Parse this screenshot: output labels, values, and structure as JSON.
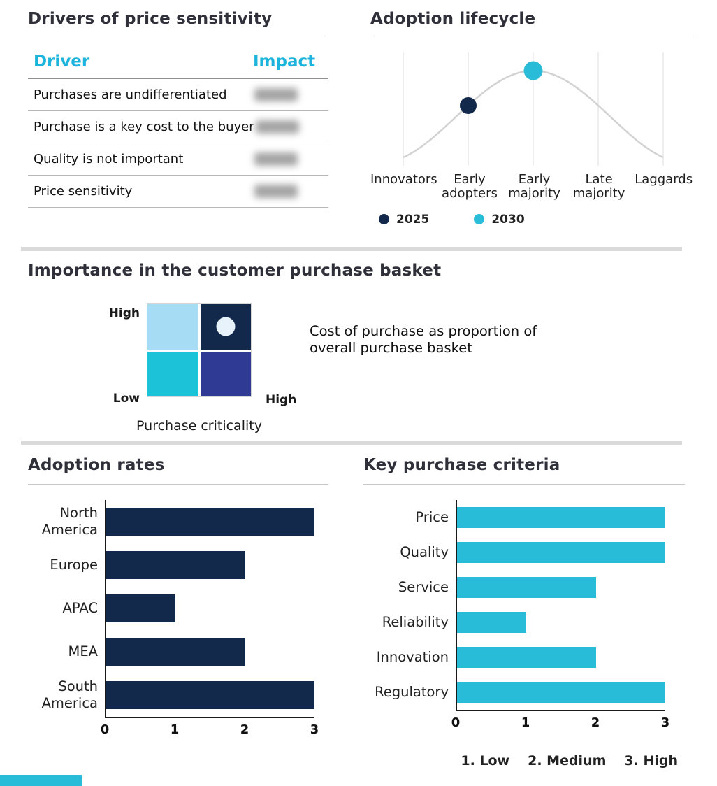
{
  "page": {
    "accent_color": "#29bcd8"
  },
  "drivers_table": {
    "title": "Drivers of price sensitivity",
    "header_color": "#1cb4dc",
    "columns": {
      "driver": "Driver",
      "impact": "Impact"
    },
    "rows": [
      {
        "driver": "Purchases are undifferentiated",
        "impact_redacted": true
      },
      {
        "driver": "Purchase is a key cost to the buyer",
        "impact_redacted": true
      },
      {
        "driver": "Quality is not important",
        "impact_redacted": true
      },
      {
        "driver": "Price sensitivity",
        "impact_redacted": true
      }
    ]
  },
  "chart_data": [
    {
      "id": "adoption_lifecycle",
      "type": "line",
      "title": "Adoption lifecycle",
      "categories": [
        "Innovators",
        "Early adopters",
        "Early majority",
        "Late majority",
        "Laggards"
      ],
      "curve": "bell curve peaking at Early majority",
      "grid": "vertical gridline at each category",
      "markers": [
        {
          "name": "2025",
          "category": "Early adopters",
          "color": "#12294b"
        },
        {
          "name": "2030",
          "category": "Early majority",
          "color": "#29bcd8"
        }
      ],
      "legend_position": "bottom-left"
    },
    {
      "id": "purchase_basket_matrix",
      "type": "heatmap",
      "title": "Importance in the customer purchase basket",
      "x_axis": {
        "label": "Purchase criticality",
        "max_label": "High"
      },
      "y_axis": {
        "min_label": "Low",
        "max_label": "High"
      },
      "quadrants": {
        "top_left": {
          "color": "#a7dcf5"
        },
        "top_right": {
          "color": "#12294b",
          "marker": true
        },
        "bottom_left": {
          "color": "#1bc2d8"
        },
        "bottom_right": {
          "color": "#2e3a93"
        }
      },
      "marker_color": "#e7f2fa",
      "annotation": "Cost of purchase as proportion of overall purchase basket"
    },
    {
      "id": "adoption_rates",
      "type": "bar",
      "orientation": "horizontal",
      "title": "Adoption rates",
      "categories": [
        "North America",
        "Europe",
        "APAC",
        "MEA",
        "South America"
      ],
      "values": [
        3,
        2,
        1,
        2,
        3
      ],
      "xlim": [
        0,
        3
      ],
      "xticks": [
        "0",
        "1",
        "2",
        "3"
      ],
      "bar_color": "#12294b"
    },
    {
      "id": "key_purchase_criteria",
      "type": "bar",
      "orientation": "horizontal",
      "title": "Key purchase criteria",
      "categories": [
        "Price",
        "Quality",
        "Service",
        "Reliability",
        "Innovation",
        "Regulatory"
      ],
      "values": [
        3,
        3,
        2,
        1,
        2,
        3
      ],
      "xlim": [
        0,
        3
      ],
      "xticks": [
        "0",
        "1",
        "2",
        "3"
      ],
      "bar_color": "#29bcd8",
      "footnote_parts": [
        "1. Low",
        "2. Medium",
        "3. High"
      ]
    }
  ]
}
